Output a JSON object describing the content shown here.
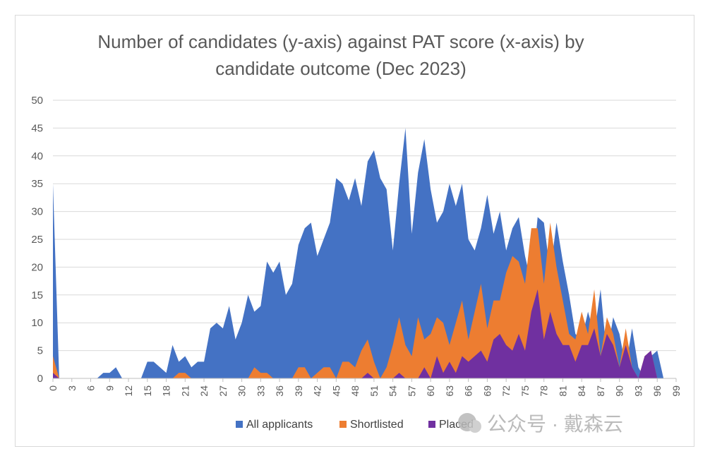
{
  "chart_data": {
    "type": "area",
    "title_lines": [
      "Number of candidates (y-axis) against PAT score (x-axis) by",
      "candidate outcome (Dec 2023)"
    ],
    "xlabel": "",
    "ylabel": "",
    "ylim": [
      0,
      50
    ],
    "y_ticks": [
      0,
      5,
      10,
      15,
      20,
      25,
      30,
      35,
      40,
      45,
      50
    ],
    "x_range": [
      0,
      99
    ],
    "x_tick_labels": [
      "0",
      "3",
      "6",
      "9",
      "12",
      "15",
      "18",
      "21",
      "24",
      "27",
      "30",
      "33",
      "36",
      "39",
      "42",
      "45",
      "48",
      "51",
      "54",
      "57",
      "60",
      "63",
      "66",
      "69",
      "72",
      "75",
      "78",
      "81",
      "84",
      "87",
      "90",
      "93",
      "96",
      "99"
    ],
    "grid": "horizontal",
    "legend_position": "bottom",
    "series": [
      {
        "name": "All applicants",
        "color": "#4472c4",
        "values": [
          35,
          0,
          0,
          0,
          0,
          0,
          0,
          0,
          1,
          1,
          2,
          0,
          0,
          0,
          0,
          3,
          3,
          2,
          1,
          6,
          3,
          4,
          2,
          3,
          3,
          9,
          10,
          9,
          13,
          7,
          10,
          15,
          12,
          13,
          21,
          19,
          21,
          15,
          17,
          24,
          27,
          28,
          22,
          25,
          28,
          36,
          35,
          32,
          36,
          31,
          39,
          41,
          36,
          34,
          23,
          35,
          45,
          26,
          37,
          43,
          34,
          28,
          30,
          35,
          31,
          35,
          25,
          23,
          27,
          33,
          26,
          30,
          23,
          27,
          29,
          22,
          17,
          29,
          28,
          19,
          28,
          21,
          15,
          8,
          7,
          12,
          8,
          16,
          4,
          11,
          8,
          2,
          9,
          2,
          0,
          4,
          5,
          0,
          0,
          0
        ]
      },
      {
        "name": "Shortlisted",
        "color": "#ed7d31",
        "values": [
          4,
          0,
          0,
          0,
          0,
          0,
          0,
          0,
          0,
          0,
          0,
          0,
          0,
          0,
          0,
          0,
          0,
          0,
          0,
          0,
          1,
          1,
          0,
          0,
          0,
          0,
          0,
          0,
          0,
          0,
          0,
          0,
          2,
          1,
          1,
          0,
          0,
          0,
          0,
          2,
          2,
          0,
          1,
          2,
          2,
          0,
          3,
          3,
          2,
          5,
          7,
          3,
          0,
          2,
          6,
          11,
          6,
          4,
          11,
          7,
          8,
          11,
          10,
          6,
          10,
          14,
          7,
          12,
          17,
          9,
          14,
          14,
          19,
          22,
          21,
          17,
          27,
          27,
          17,
          28,
          20,
          14,
          8,
          7,
          12,
          8,
          16,
          4,
          11,
          8,
          2,
          9,
          2,
          0,
          4,
          5,
          0,
          0,
          0,
          0
        ]
      },
      {
        "name": "Placed",
        "color": "#7030a0",
        "values": [
          1,
          0,
          0,
          0,
          0,
          0,
          0,
          0,
          0,
          0,
          0,
          0,
          0,
          0,
          0,
          0,
          0,
          0,
          0,
          0,
          0,
          0,
          0,
          0,
          0,
          0,
          0,
          0,
          0,
          0,
          0,
          0,
          0,
          0,
          0,
          0,
          0,
          0,
          0,
          0,
          0,
          0,
          0,
          0,
          0,
          0,
          0,
          0,
          0,
          0,
          1,
          0,
          0,
          0,
          0,
          1,
          0,
          0,
          0,
          2,
          0,
          4,
          1,
          3,
          1,
          4,
          3,
          4,
          5,
          3,
          7,
          8,
          6,
          5,
          8,
          5,
          12,
          16,
          7,
          12,
          8,
          6,
          6,
          3,
          6,
          6,
          9,
          4,
          8,
          6,
          2,
          6,
          2,
          0,
          4,
          5,
          0,
          0,
          0,
          0
        ]
      }
    ]
  },
  "watermark": {
    "text": "公众号 · 戴森云"
  }
}
